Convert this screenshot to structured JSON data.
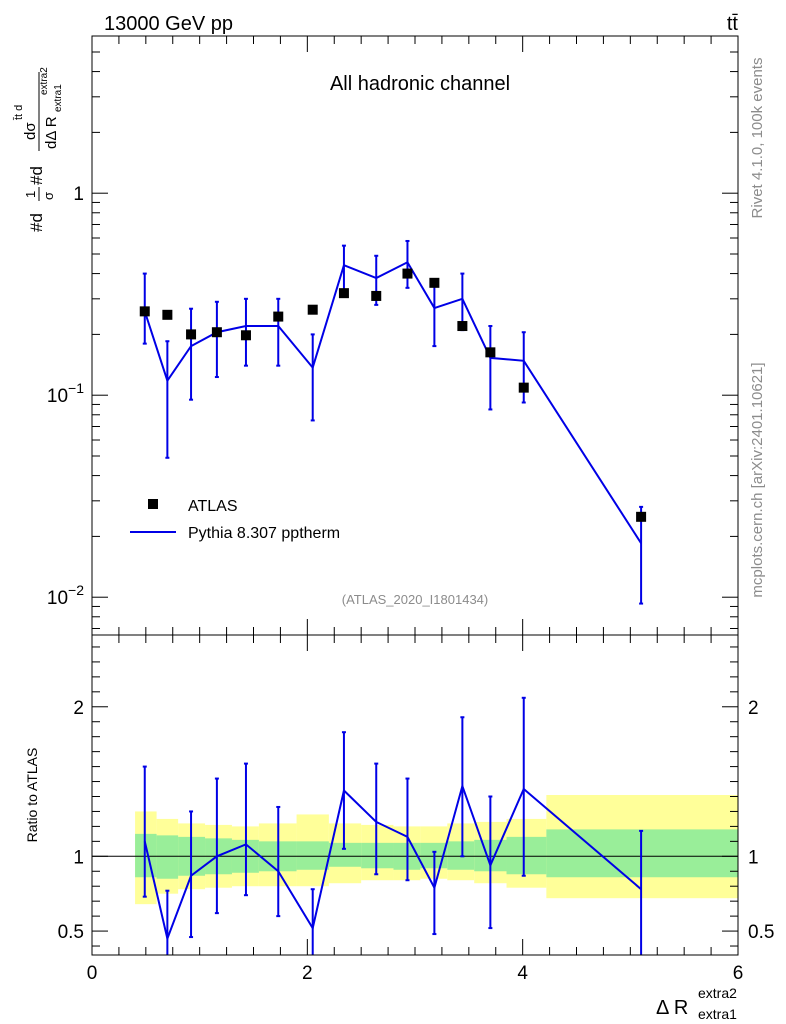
{
  "header": {
    "energy_label": "13000 GeV pp",
    "process_label": "tt̄"
  },
  "side_labels": {
    "rivet": "Rivet 4.1.0,  100k events",
    "source": "mcplots.cern.ch [arXiv:2401.10621]"
  },
  "chart_data": [
    {
      "type": "scatter",
      "title": "All hadronic channel",
      "analysis_label": "(ATLAS_2020_I1801434)",
      "xlabel": "Δ R",
      "xlabel_sup": "extra2",
      "xlabel_sub": "extra1",
      "ylabel": "#d 1/σ #d dσ/dΔ R",
      "ylabel_parts": [
        "#d",
        "1",
        "σ",
        "#d",
        "dσ",
        "t̄t d",
        "dΔ R",
        "extra1",
        "extra2"
      ],
      "xlim": [
        0,
        6
      ],
      "ylim": [
        0.0065,
        6
      ],
      "yscale": "log",
      "yticks": [
        {
          "value": 0.01,
          "base": "10",
          "exp": "−2"
        },
        {
          "value": 0.1,
          "base": "10",
          "exp": "−1"
        },
        {
          "value": 1,
          "base": "1",
          "exp": ""
        }
      ],
      "legend": {
        "position": "lower-left",
        "entries": [
          "ATLAS",
          "Pythia 8.307 pptherm"
        ]
      },
      "series": [
        {
          "name": "ATLAS",
          "color": "#000000",
          "x": [
            0.49,
            0.7,
            0.92,
            1.16,
            1.43,
            1.73,
            2.05,
            2.34,
            2.64,
            2.93,
            3.18,
            3.44,
            3.7,
            4.01,
            5.1
          ],
          "y": [
            0.26,
            0.25,
            0.2,
            0.205,
            0.198,
            0.245,
            0.265,
            0.32,
            0.31,
            0.4,
            0.36,
            0.22,
            0.163,
            0.109,
            0.025
          ]
        },
        {
          "name": "Pythia 8.307 pptherm",
          "color": "#0000e6",
          "x": [
            0.49,
            0.7,
            0.92,
            1.16,
            1.43,
            1.73,
            2.05,
            2.34,
            2.64,
            2.93,
            3.18,
            3.44,
            3.7,
            4.01,
            5.1
          ],
          "y": [
            0.26,
            0.118,
            0.175,
            0.205,
            0.22,
            0.22,
            0.137,
            0.44,
            0.38,
            0.455,
            0.27,
            0.3,
            0.153,
            0.148,
            0.0185
          ],
          "y_low": [
            0.18,
            0.049,
            0.095,
            0.123,
            0.14,
            0.14,
            0.075,
            0.33,
            0.28,
            0.34,
            0.175,
            0.21,
            0.085,
            0.092,
            0.0093
          ],
          "y_high": [
            0.4,
            0.185,
            0.268,
            0.29,
            0.3,
            0.3,
            0.2,
            0.55,
            0.49,
            0.58,
            0.37,
            0.4,
            0.22,
            0.205,
            0.028
          ]
        }
      ]
    },
    {
      "type": "line",
      "ylabel": "Ratio to ATLAS",
      "xlabel": "Δ R",
      "xlim": [
        0,
        6
      ],
      "ylim": [
        0.34,
        2.48
      ],
      "yticks": [
        0.5,
        1,
        2
      ],
      "xticks": [
        0,
        2,
        4,
        6
      ],
      "reference": 1,
      "bands": [
        {
          "x0": 0.4,
          "x1": 0.6,
          "stat": [
            0.86,
            1.15
          ],
          "total": [
            0.68,
            1.3
          ]
        },
        {
          "x0": 0.6,
          "x1": 0.8,
          "stat": [
            0.85,
            1.14
          ],
          "total": [
            0.75,
            1.25
          ]
        },
        {
          "x0": 0.8,
          "x1": 1.05,
          "stat": [
            0.87,
            1.13
          ],
          "total": [
            0.78,
            1.22
          ]
        },
        {
          "x0": 1.05,
          "x1": 1.3,
          "stat": [
            0.88,
            1.12
          ],
          "total": [
            0.79,
            1.21
          ]
        },
        {
          "x0": 1.3,
          "x1": 1.55,
          "stat": [
            0.89,
            1.11
          ],
          "total": [
            0.8,
            1.2
          ]
        },
        {
          "x0": 1.55,
          "x1": 1.9,
          "stat": [
            0.9,
            1.1
          ],
          "total": [
            0.8,
            1.22
          ]
        },
        {
          "x0": 1.9,
          "x1": 2.2,
          "stat": [
            0.91,
            1.1
          ],
          "total": [
            0.8,
            1.28
          ]
        },
        {
          "x0": 2.2,
          "x1": 2.5,
          "stat": [
            0.93,
            1.09
          ],
          "total": [
            0.82,
            1.22
          ]
        },
        {
          "x0": 2.5,
          "x1": 2.8,
          "stat": [
            0.92,
            1.09
          ],
          "total": [
            0.84,
            1.21
          ]
        },
        {
          "x0": 2.8,
          "x1": 3.05,
          "stat": [
            0.91,
            1.09
          ],
          "total": [
            0.84,
            1.2
          ]
        },
        {
          "x0": 3.05,
          "x1": 3.3,
          "stat": [
            0.92,
            1.09
          ],
          "total": [
            0.85,
            1.2
          ]
        },
        {
          "x0": 3.3,
          "x1": 3.55,
          "stat": [
            0.91,
            1.1
          ],
          "total": [
            0.84,
            1.22
          ]
        },
        {
          "x0": 3.55,
          "x1": 3.85,
          "stat": [
            0.9,
            1.11
          ],
          "total": [
            0.82,
            1.23
          ]
        },
        {
          "x0": 3.85,
          "x1": 4.22,
          "stat": [
            0.88,
            1.13
          ],
          "total": [
            0.79,
            1.25
          ]
        },
        {
          "x0": 4.22,
          "x1": 6.0,
          "stat": [
            0.86,
            1.18
          ],
          "total": [
            0.72,
            1.41
          ]
        }
      ],
      "series": [
        {
          "name": "Pythia 8.307 pptherm / ATLAS",
          "color": "#0000e6",
          "x": [
            0.49,
            0.7,
            0.92,
            1.16,
            1.43,
            1.73,
            2.05,
            2.34,
            2.64,
            2.93,
            3.18,
            3.44,
            3.7,
            4.01,
            5.1
          ],
          "y": [
            1.1,
            0.45,
            0.87,
            1.0,
            1.08,
            0.9,
            0.52,
            1.44,
            1.23,
            1.13,
            0.79,
            1.47,
            0.94,
            1.45,
            0.78
          ],
          "y_low": [
            0.73,
            0.33,
            0.46,
            0.62,
            0.74,
            0.6,
            0.32,
            1.05,
            0.88,
            0.84,
            0.48,
            1.0,
            0.52,
            0.87,
            0.33
          ],
          "y_high": [
            1.6,
            0.77,
            1.3,
            1.52,
            1.62,
            1.33,
            0.78,
            1.83,
            1.62,
            1.52,
            1.03,
            1.93,
            1.4,
            2.06,
            1.17
          ]
        }
      ]
    }
  ]
}
